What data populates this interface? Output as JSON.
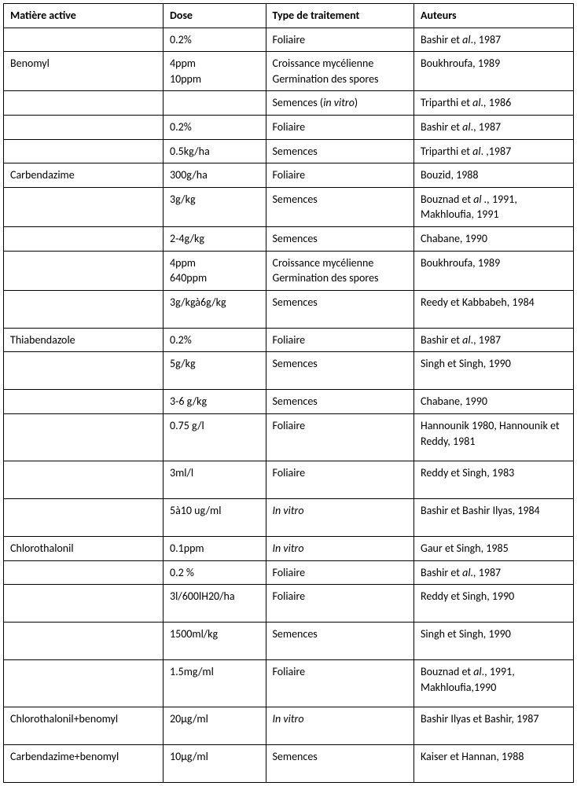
{
  "table": {
    "columns": [
      "Matière active",
      "Dose",
      "Type de traitement",
      "Auteurs"
    ],
    "col_widths_pct": [
      28,
      18,
      26,
      28
    ],
    "border_color": "#000000",
    "background_color": "#ffffff",
    "font_family": "Calibri",
    "font_size_pt": 11,
    "rows": [
      {
        "m": "",
        "d": "0.2%",
        "t": "Foliaire",
        "a": "Bashir et <i>al</i>., 1987"
      },
      {
        "m": "Benomyl",
        "d": "4ppm\n10ppm",
        "t": "Croissance mycélienne\nGermination des spores",
        "a": "Boukhroufa, 1989"
      },
      {
        "m": "",
        "d": "",
        "t": "Semences (<i>in vitro</i>)",
        "a": "Triparthi et <i>al.,</i> 1986"
      },
      {
        "m": "",
        "d": "0.2%",
        "t": "Foliaire",
        "a": "Bashir et <i>al</i>., 1987"
      },
      {
        "m": "",
        "d": "0.5kg/ha",
        "t": "Semences",
        "a": "Triparthi et <i>al</i>. ,1987"
      },
      {
        "m": "Carbendazime",
        "d": "300g/ha",
        "t": "Foliaire",
        "a": "Bouzid, 1988"
      },
      {
        "m": "",
        "d": "3g/kg",
        "t": "Semences",
        "a": "Bouznad et <i>al .,</i> 1991, Makhloufia, 1991",
        "tall": true
      },
      {
        "m": "",
        "d": "2-4g/kg",
        "t": "Semences",
        "a": "Chabane, 1990"
      },
      {
        "m": "",
        "d": "4ppm\n640ppm",
        "t": "Croissance mycélienne\nGermination des spores",
        "a": "Boukhroufa, 1989"
      },
      {
        "m": "",
        "d": "3g/kgà6g/kg",
        "t": "Semences",
        "a": "Reedy et Kabbabeh, 1984",
        "tall": true
      },
      {
        "m": "Thiabendazole",
        "d": "0.2%",
        "t": "Foliaire",
        "a": "Bashir et <i>al</i>., 1987"
      },
      {
        "m": "",
        "d": "5g/kg",
        "t": "Semences",
        "a": "Singh et Singh, 1990",
        "tall": true
      },
      {
        "m": "",
        "d": "3-6 g/kg",
        "t": "Semences",
        "a": "Chabane, 1990"
      },
      {
        "m": "",
        "d": "0.75 g/l",
        "t": "Foliaire",
        "a": "Hannounik 1980, Hannounik et Reddy,  1981",
        "taller": true
      },
      {
        "m": "",
        "d": "3ml/l",
        "t": "Foliaire",
        "a": "Reddy et Singh, 1983",
        "tall": true
      },
      {
        "m": "",
        "d": "5à10 ug/ml",
        "t": "<i>In vitro</i>",
        "a": "Bashir et Bashir Ilyas, 1984",
        "tall": true
      },
      {
        "m": "Chlorothalonil",
        "d": "0.1ppm",
        "t": "<i>In vitro</i>",
        "a": "Gaur et Singh, 1985"
      },
      {
        "m": "",
        "d": "0.2 %",
        "t": "Foliaire",
        "a": "Bashir et <i>al.,</i> 1987"
      },
      {
        "m": "",
        "d": "3l/600lH20/ha",
        "t": "Foliaire",
        "a": "Reddy et Singh, 1990",
        "tall": true
      },
      {
        "m": "",
        "d": "1500ml/kg",
        "t": "Semences",
        "a": "Singh et Singh, 1990",
        "tall": true
      },
      {
        "m": "",
        "d": "1.5mg/ml",
        "t": "Foliaire",
        "a": "Bouznad et <i>al</i>., 1991, Makhloufia,1990",
        "taller": true
      },
      {
        "m": "Chlorothalonil+benomyl",
        "d": "20µg/ml",
        "t": "<i>In vitro</i>",
        "a": "Bashir Ilyas et Bashir, 1987",
        "tall": true
      },
      {
        "m": "Carbendazime+benomyl",
        "d": "10µg/ml",
        "t": "Semences",
        "a": "Kaiser et Hannan, 1988",
        "tall": true
      }
    ]
  }
}
